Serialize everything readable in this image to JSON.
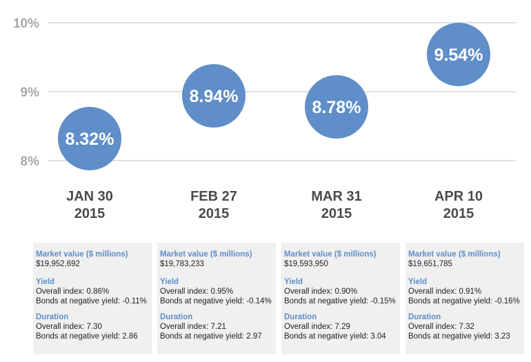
{
  "chart_data": {
    "type": "scatter",
    "title": "",
    "xlabel": "",
    "ylabel": "",
    "ylim": [
      8,
      10
    ],
    "yticks": [
      "10%",
      "9%",
      "8%"
    ],
    "ytick_values": [
      10,
      9,
      8
    ],
    "grid": true,
    "points": [
      {
        "date_line1": "JAN 30",
        "date_line2": "2015",
        "value": 8.32,
        "label": "8.32%"
      },
      {
        "date_line1": "FEB 27",
        "date_line2": "2015",
        "value": 8.94,
        "label": "8.94%"
      },
      {
        "date_line1": "MAR 31",
        "date_line2": "2015",
        "value": 8.78,
        "label": "8.78%"
      },
      {
        "date_line1": "APR 10",
        "date_line2": "2015",
        "value": 9.54,
        "label": "9.54%"
      }
    ],
    "colors": {
      "bubble": "#5f8ec8",
      "bubble_text": "#ffffff",
      "grid": "#cfcfcf",
      "tick": "#a8a8a8",
      "date": "#4a4a4a"
    }
  },
  "panels": [
    {
      "mv_title": "Market value ($ millions)",
      "mv_value": "$19,952,692",
      "yield_title": "Yield",
      "yield_overall": "Overall index:  0.86%",
      "yield_neg": "Bonds at negative yield:  -0.11%",
      "dur_title": "Duration",
      "dur_overall": "Overall index:  7.30",
      "dur_neg": "Bonds at negative yield:  2.86"
    },
    {
      "mv_title": "Market value ($ millions)",
      "mv_value": "$19,783,233",
      "yield_title": "Yield",
      "yield_overall": "Overall index:  0.95%",
      "yield_neg": "Bonds at negative yield:  -0.14%",
      "dur_title": "Duration",
      "dur_overall": "Overall index:  7.21",
      "dur_neg": "Bonds at negative yield:  2.97"
    },
    {
      "mv_title": "Market value ($ millions)",
      "mv_value": "$19,593,950",
      "yield_title": "Yield",
      "yield_overall": "Overall index:  0.90%",
      "yield_neg": "Bonds at negative yield:  -0.15%",
      "dur_title": "Duration",
      "dur_overall": "Overall index:  7.29",
      "dur_neg": "Bonds at negative yield:  3.04"
    },
    {
      "mv_title": "Market value ($ millions)",
      "mv_value": "$19,651,785",
      "yield_title": "Yield",
      "yield_overall": "Overall index:  0.91%",
      "yield_neg": "Bonds at negative yield:  -0.16%",
      "dur_title": "Duration",
      "dur_overall": "Overall index:  7.32",
      "dur_neg": "Bonds at negative yield:  3.23"
    }
  ]
}
